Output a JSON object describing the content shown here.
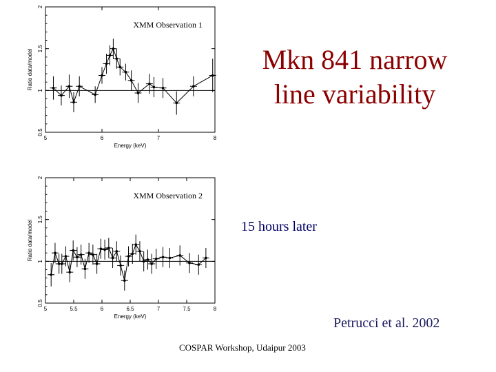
{
  "slide": {
    "title_line1": "Mkn 841 narrow",
    "title_line2": "line variability",
    "caption": "15 hours later",
    "citation": "Petrucci et al. 2002",
    "footer": "COSPAR Workshop, Udaipur 2003",
    "title_color": "#8b0000"
  },
  "chart_data": [
    {
      "type": "line",
      "title": "XMM Observation 1",
      "xlabel": "Energy (keV)",
      "ylabel": "Ratio data/model",
      "xlim": [
        5,
        8
      ],
      "ylim": [
        0.5,
        2
      ],
      "xticks": [
        5,
        6,
        7,
        8
      ],
      "xtick_labels": [
        "5",
        "6",
        "7",
        "8"
      ],
      "yticks": [
        0.5,
        1,
        1.5,
        2
      ],
      "ytick_labels": [
        "0.5",
        "1",
        "1.5",
        "2"
      ],
      "reference_line": 1,
      "series": [
        {
          "x": [
            5.14,
            5.28,
            5.42,
            5.5,
            5.6,
            5.88,
            6.0,
            6.08,
            6.14,
            6.2,
            6.26,
            6.32,
            6.42,
            6.52,
            6.64,
            6.84,
            6.92,
            7.08,
            7.32,
            7.62,
            7.96
          ],
          "y": [
            1.03,
            0.94,
            1.05,
            0.86,
            1.05,
            0.95,
            1.18,
            1.32,
            1.42,
            1.5,
            1.38,
            1.28,
            1.22,
            1.12,
            0.97,
            1.08,
            1.04,
            1.03,
            0.85,
            1.05,
            1.18
          ],
          "yerr": [
            0.14,
            0.12,
            0.14,
            0.12,
            0.12,
            0.1,
            0.1,
            0.12,
            0.12,
            0.12,
            0.12,
            0.1,
            0.1,
            0.12,
            0.12,
            0.12,
            0.12,
            0.12,
            0.14,
            0.12,
            0.2
          ]
        }
      ]
    },
    {
      "type": "line",
      "title": "XMM Observation 2",
      "xlabel": "Energy (keV)",
      "ylabel": "Ratio data/model",
      "xlim": [
        5,
        8
      ],
      "ylim": [
        0.5,
        2
      ],
      "xticks": [
        5,
        5.5,
        6,
        6.5,
        7,
        7.5,
        8
      ],
      "xtick_labels": [
        "5",
        "5.5",
        "6",
        "6.5",
        "7",
        "7.5",
        "8"
      ],
      "yticks": [
        0.5,
        1,
        1.5,
        2
      ],
      "ytick_labels": [
        "0.5",
        "1",
        "1.5",
        "2"
      ],
      "reference_line": 1,
      "series": [
        {
          "x": [
            5.1,
            5.17,
            5.24,
            5.29,
            5.36,
            5.43,
            5.49,
            5.56,
            5.63,
            5.7,
            5.77,
            5.84,
            5.91,
            5.98,
            6.05,
            6.12,
            6.19,
            6.26,
            6.33,
            6.4,
            6.47,
            6.54,
            6.6,
            6.67,
            6.74,
            6.81,
            6.88,
            6.96,
            7.08,
            7.2,
            7.38,
            7.55,
            7.71,
            7.84
          ],
          "y": [
            0.84,
            1.1,
            0.97,
            0.97,
            1.06,
            0.87,
            1.13,
            1.05,
            1.08,
            0.91,
            1.1,
            1.08,
            0.97,
            1.15,
            1.14,
            1.16,
            1.04,
            1.12,
            0.95,
            0.77,
            1.06,
            1.09,
            1.2,
            1.12,
            1.0,
            1.02,
            0.97,
            1.03,
            1.05,
            1.04,
            1.07,
            0.98,
            0.96,
            1.04
          ],
          "yerr": [
            0.14,
            0.12,
            0.12,
            0.12,
            0.12,
            0.12,
            0.12,
            0.12,
            0.12,
            0.12,
            0.12,
            0.12,
            0.12,
            0.12,
            0.12,
            0.12,
            0.12,
            0.12,
            0.12,
            0.12,
            0.12,
            0.12,
            0.12,
            0.12,
            0.12,
            0.12,
            0.12,
            0.12,
            0.12,
            0.12,
            0.12,
            0.12,
            0.12,
            0.12
          ]
        }
      ]
    }
  ]
}
